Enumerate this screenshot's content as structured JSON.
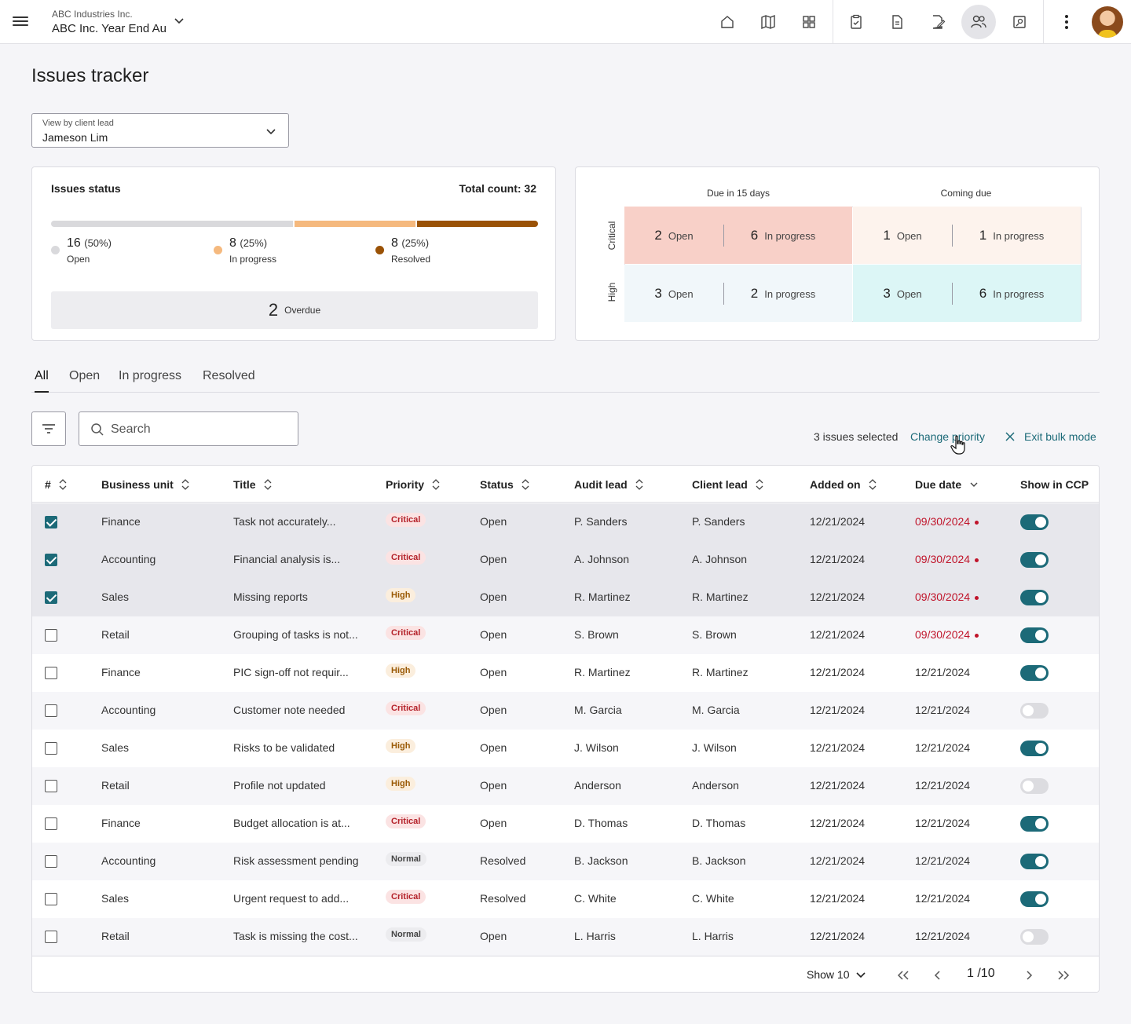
{
  "header": {
    "company": "ABC Industries Inc.",
    "project": "ABC Inc. Year  End Audit",
    "nav_icons": [
      "home-icon",
      "map-icon",
      "dashboard-icon",
      "checklist-icon",
      "document-icon",
      "edit-document-icon",
      "people-icon",
      "settings-gear-icon"
    ],
    "active_icon": "people-icon"
  },
  "page": {
    "title": "Issues tracker",
    "view_select": {
      "label": "View by client lead",
      "value": "Jameson Lim"
    }
  },
  "status_card": {
    "title": "Issues status",
    "total": "Total count: 32",
    "segments": [
      {
        "count": "16",
        "pct": "(50%)",
        "label": "Open",
        "fraction": 0.5,
        "color": "#d9d9dc"
      },
      {
        "count": "8",
        "pct": "(25%)",
        "label": "In progress",
        "fraction": 0.25,
        "color": "#f5b97e"
      },
      {
        "count": "8",
        "pct": "(25%)",
        "label": "Resolved",
        "fraction": 0.25,
        "color": "#9a5206"
      }
    ],
    "overdue": {
      "count": "2",
      "label": "Overdue"
    }
  },
  "matrix": {
    "columns": [
      "Due in 15 days",
      "Coming due"
    ],
    "rows": [
      "Critical",
      "High"
    ],
    "cells": [
      [
        {
          "open": "2",
          "progress": "6",
          "color": "#f8d0c8"
        },
        {
          "open": "1",
          "progress": "1",
          "color": "#fdf3ed"
        }
      ],
      [
        {
          "open": "3",
          "progress": "2",
          "color": "#f1f7fa"
        },
        {
          "open": "3",
          "progress": "6",
          "color": "#dcf6f6"
        }
      ]
    ],
    "open_label": "Open",
    "progress_label": "In progress"
  },
  "tabs": [
    "All",
    "Open",
    "In progress",
    "Resolved"
  ],
  "active_tab": "All",
  "toolbar": {
    "search_placeholder": "Search",
    "selected_text": "3 issues selected",
    "change_priority": "Change priority",
    "exit_bulk": "Exit bulk mode"
  },
  "table": {
    "columns": [
      "#",
      "Business unit",
      "Title",
      "Priority",
      "Status",
      "Audit lead",
      "Client lead",
      "Added on",
      "Due date",
      "Show in CCP"
    ],
    "rows": [
      {
        "selected": true,
        "unit": "Finance",
        "title": "Task not accurately...",
        "priority": "Critical",
        "status": "Open",
        "audit": "P. Sanders",
        "client": "P. Sanders",
        "added": "12/21/2024",
        "due": "09/30/2024",
        "overdue": true,
        "ccp": true
      },
      {
        "selected": true,
        "unit": "Accounting",
        "title": "Financial analysis is...",
        "priority": "Critical",
        "status": "Open",
        "audit": "A. Johnson",
        "client": "A. Johnson",
        "added": "12/21/2024",
        "due": "09/30/2024",
        "overdue": true,
        "ccp": true
      },
      {
        "selected": true,
        "unit": "Sales",
        "title": "Missing reports",
        "priority": "High",
        "status": "Open",
        "audit": "R. Martinez",
        "client": "R. Martinez",
        "added": "12/21/2024",
        "due": "09/30/2024",
        "overdue": true,
        "ccp": true
      },
      {
        "selected": false,
        "unit": "Retail",
        "title": "Grouping of tasks is not...",
        "priority": "Critical",
        "status": "Open",
        "audit": "S. Brown",
        "client": "S. Brown",
        "added": "12/21/2024",
        "due": "09/30/2024",
        "overdue": true,
        "ccp": true
      },
      {
        "selected": false,
        "unit": "Finance",
        "title": "PIC sign-off not requir...",
        "priority": "High",
        "status": "Open",
        "audit": "R. Martinez",
        "client": "R. Martinez",
        "added": "12/21/2024",
        "due": "12/21/2024",
        "overdue": false,
        "ccp": true
      },
      {
        "selected": false,
        "unit": "Accounting",
        "title": "Customer note needed",
        "priority": "Critical",
        "status": "Open",
        "audit": "M. Garcia",
        "client": "M. Garcia",
        "added": "12/21/2024",
        "due": "12/21/2024",
        "overdue": false,
        "ccp": false
      },
      {
        "selected": false,
        "unit": "Sales",
        "title": "Risks to be validated",
        "priority": "High",
        "status": "Open",
        "audit": "J. Wilson",
        "client": "J. Wilson",
        "added": "12/21/2024",
        "due": "12/21/2024",
        "overdue": false,
        "ccp": true
      },
      {
        "selected": false,
        "unit": "Retail",
        "title": "Profile not updated",
        "priority": "High",
        "status": "Open",
        "audit": "Anderson",
        "client": "Anderson",
        "added": "12/21/2024",
        "due": "12/21/2024",
        "overdue": false,
        "ccp": false
      },
      {
        "selected": false,
        "unit": "Finance",
        "title": "Budget allocation is at...",
        "priority": "Critical",
        "status": "Open",
        "audit": "D. Thomas",
        "client": "D. Thomas",
        "added": "12/21/2024",
        "due": "12/21/2024",
        "overdue": false,
        "ccp": true
      },
      {
        "selected": false,
        "unit": "Accounting",
        "title": "Risk assessment pending",
        "priority": "Normal",
        "status": "Resolved",
        "audit": "B. Jackson",
        "client": "B. Jackson",
        "added": "12/21/2024",
        "due": "12/21/2024",
        "overdue": false,
        "ccp": true
      },
      {
        "selected": false,
        "unit": "Sales",
        "title": "Urgent request to add...",
        "priority": "Critical",
        "status": "Resolved",
        "audit": "C. White",
        "client": "C. White",
        "added": "12/21/2024",
        "due": "12/21/2024",
        "overdue": false,
        "ccp": true
      },
      {
        "selected": false,
        "unit": "Retail",
        "title": "Task is missing the cost...",
        "priority": "Normal",
        "status": "Open",
        "audit": "L. Harris",
        "client": "L. Harris",
        "added": "12/21/2024",
        "due": "12/21/2024",
        "overdue": false,
        "ccp": false
      }
    ]
  },
  "pagination": {
    "show": "Show 10",
    "page": "1 /10"
  }
}
